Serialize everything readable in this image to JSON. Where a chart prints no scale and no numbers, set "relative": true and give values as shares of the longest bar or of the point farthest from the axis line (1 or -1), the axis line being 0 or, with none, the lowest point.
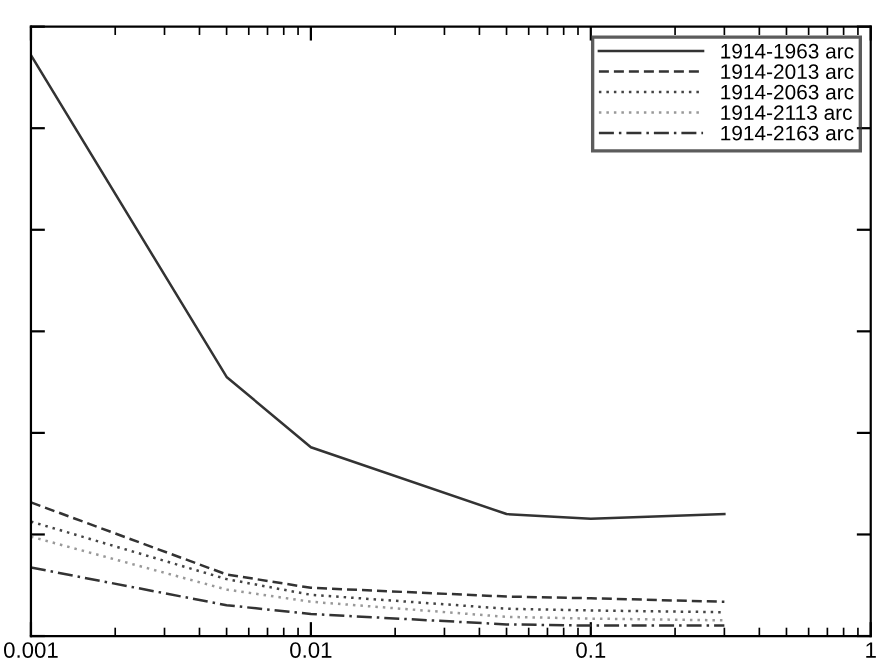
{
  "chart_data": {
    "type": "line",
    "relative": true,
    "log": "x",
    "xlim": [
      0.001,
      1
    ],
    "xticks": [
      0.001,
      0.01,
      0.1,
      1
    ],
    "grid": false,
    "legend": "top right",
    "marker": "none",
    "series": [
      {
        "name": "1914-1963 arc",
        "color": "#333333",
        "line_style": "solid",
        "x": [
          0.001,
          0.005,
          0.01,
          0.05,
          0.1,
          0.3
        ],
        "values": [
          1,
          0.446,
          0.325,
          0.21,
          0.202,
          0.21
        ]
      },
      {
        "name": "1914-2013 arc",
        "color": "#333333",
        "line_style": "dashed",
        "x": [
          0.001,
          0.005,
          0.01,
          0.05,
          0.1,
          0.3
        ],
        "values": [
          0.23,
          0.106,
          0.083,
          0.068,
          0.065,
          0.059
        ]
      },
      {
        "name": "1914-2063 arc",
        "color": "#444444",
        "line_style": "dotted",
        "x": [
          0.001,
          0.005,
          0.01,
          0.05,
          0.1,
          0.3
        ],
        "values": [
          0.197,
          0.098,
          0.071,
          0.047,
          0.044,
          0.041
        ]
      },
      {
        "name": "1914-2113 arc",
        "color": "#999999",
        "line_style": "dotted",
        "x": [
          0.001,
          0.005,
          0.01,
          0.05,
          0.1,
          0.3
        ],
        "values": [
          0.171,
          0.08,
          0.059,
          0.033,
          0.03,
          0.027
        ]
      },
      {
        "name": "1914-2163 arc",
        "color": "#333333",
        "line_style": "dashdot",
        "x": [
          0.001,
          0.005,
          0.01,
          0.05,
          0.1,
          0.3
        ],
        "values": [
          0.118,
          0.053,
          0.038,
          0.02,
          0.018,
          0.018
        ]
      }
    ]
  }
}
